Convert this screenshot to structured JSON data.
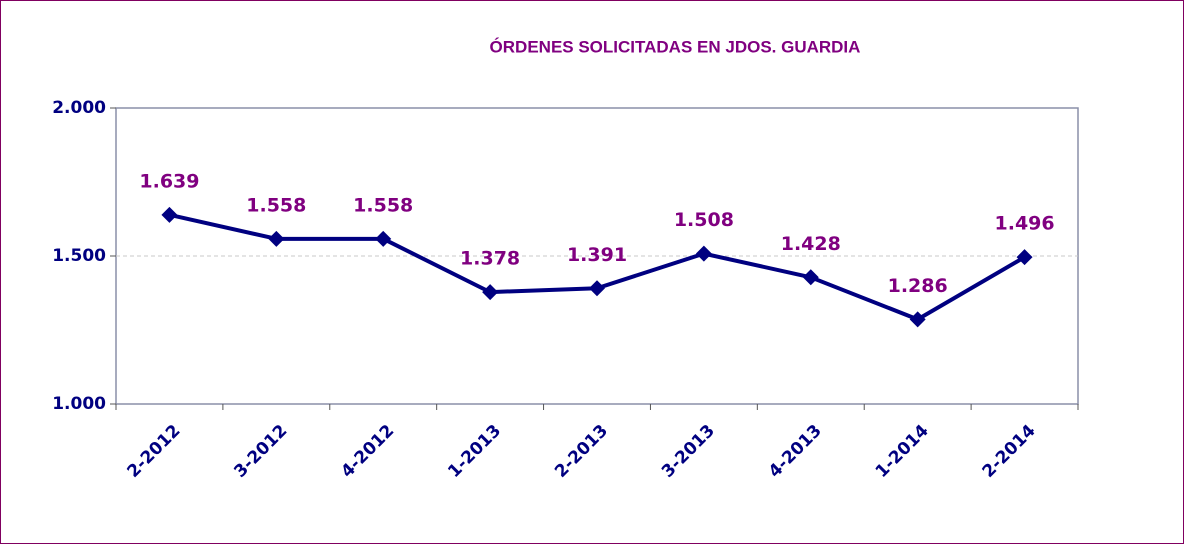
{
  "chart_data": {
    "type": "line",
    "title": "ÓRDENES SOLICITADAS EN JDOS. GUARDIA",
    "categories": [
      "2-2012",
      "3-2012",
      "4-2012",
      "1-2013",
      "2-2013",
      "3-2013",
      "4-2013",
      "1-2014",
      "2-2014"
    ],
    "series": [
      {
        "color": "#000080",
        "values": [
          1639,
          1558,
          1558,
          1378,
          1391,
          1508,
          1428,
          1286,
          1496
        ],
        "value_labels": [
          "1.639",
          "1.558",
          "1.558",
          "1.378",
          "1.391",
          "1.508",
          "1.428",
          "1.286",
          "1.496"
        ]
      }
    ],
    "ylim": [
      1000,
      2000
    ],
    "yticks": [
      {
        "value": 1000,
        "label": "1.000"
      },
      {
        "value": 1500,
        "label": "1.500"
      },
      {
        "value": 2000,
        "label": "2.000"
      }
    ],
    "grid": true
  }
}
